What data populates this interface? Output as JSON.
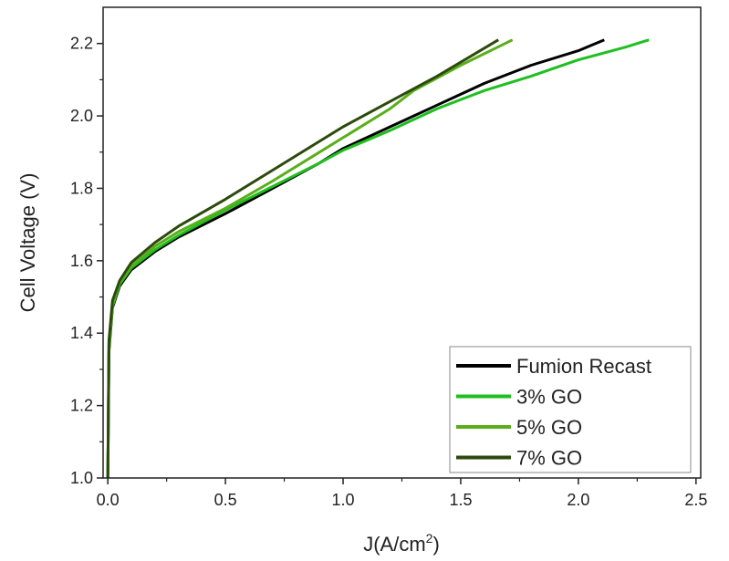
{
  "chart_data": {
    "type": "line",
    "title": "",
    "xlabel": "J(A/cm",
    "xlabel_sup": "2",
    "xlabel_end": ")",
    "ylabel": "Cell Voltage (V)",
    "xlim": [
      -0.02,
      2.52
    ],
    "ylim": [
      1.0,
      2.3
    ],
    "xticks": [
      "0.0",
      "0.5",
      "1.0",
      "1.5",
      "2.0",
      "2.5"
    ],
    "xtick_values": [
      0,
      0.5,
      1.0,
      1.5,
      2.0,
      2.5
    ],
    "yticks": [
      "1.0",
      "1.2",
      "1.4",
      "1.6",
      "1.8",
      "2.0",
      "2.2"
    ],
    "ytick_values": [
      1.0,
      1.2,
      1.4,
      1.6,
      1.8,
      2.0,
      2.2
    ],
    "grid": false,
    "legend_position": "bottom-right",
    "series": [
      {
        "name": "Fumion Recast",
        "color": "#000000",
        "x": [
          0,
          0.005,
          0.02,
          0.05,
          0.1,
          0.2,
          0.3,
          0.5,
          0.7,
          0.9,
          1.0,
          1.2,
          1.4,
          1.6,
          1.8,
          2.0,
          2.11
        ],
        "y": [
          1.0,
          1.35,
          1.47,
          1.53,
          1.575,
          1.625,
          1.665,
          1.73,
          1.8,
          1.87,
          1.91,
          1.97,
          2.03,
          2.09,
          2.14,
          2.18,
          2.21
        ]
      },
      {
        "name": "3% GO",
        "color": "#1fbf1f",
        "x": [
          0,
          0.005,
          0.02,
          0.05,
          0.1,
          0.2,
          0.3,
          0.5,
          0.7,
          0.9,
          1.0,
          1.2,
          1.4,
          1.6,
          1.8,
          2.0,
          2.2,
          2.3
        ],
        "y": [
          1.0,
          1.36,
          1.475,
          1.535,
          1.58,
          1.63,
          1.67,
          1.74,
          1.805,
          1.87,
          1.905,
          1.96,
          2.02,
          2.07,
          2.11,
          2.155,
          2.19,
          2.21
        ]
      },
      {
        "name": "5% GO",
        "color": "#5aae1a",
        "x": [
          0,
          0.005,
          0.02,
          0.05,
          0.1,
          0.2,
          0.3,
          0.5,
          0.7,
          0.9,
          1.0,
          1.2,
          1.3,
          1.5,
          1.72
        ],
        "y": [
          1.0,
          1.37,
          1.48,
          1.54,
          1.585,
          1.64,
          1.68,
          1.745,
          1.82,
          1.9,
          1.94,
          2.02,
          2.07,
          2.14,
          2.21
        ]
      },
      {
        "name": "7% GO",
        "color": "#2c4a0c",
        "x": [
          0,
          0.005,
          0.02,
          0.05,
          0.1,
          0.2,
          0.3,
          0.5,
          0.7,
          0.9,
          1.0,
          1.2,
          1.4,
          1.66
        ],
        "y": [
          1.0,
          1.38,
          1.49,
          1.545,
          1.595,
          1.65,
          1.695,
          1.77,
          1.85,
          1.93,
          1.97,
          2.04,
          2.11,
          2.21
        ]
      }
    ]
  }
}
